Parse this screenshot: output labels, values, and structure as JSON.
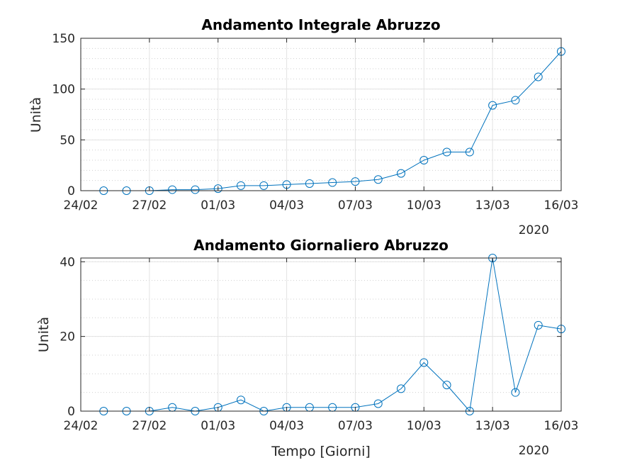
{
  "chart_data": [
    {
      "type": "line",
      "title": "Andamento Integrale Abruzzo",
      "xlabel": "",
      "ylabel": "Unità",
      "year_label": "2020",
      "x_tick_labels": [
        "24/02",
        "27/02",
        "01/03",
        "04/03",
        "07/03",
        "10/03",
        "13/03",
        "16/03"
      ],
      "y_ticks": [
        "0",
        "50",
        "100",
        "150"
      ],
      "ylim": [
        0,
        150
      ],
      "grid": "major+minor",
      "marker": "circle",
      "x": [
        "25/02",
        "26/02",
        "27/02",
        "28/02",
        "29/02",
        "01/03",
        "02/03",
        "03/03",
        "04/03",
        "05/03",
        "06/03",
        "07/03",
        "08/03",
        "09/03",
        "10/03",
        "11/03",
        "12/03",
        "13/03",
        "14/03",
        "15/03",
        "16/03"
      ],
      "values": [
        0,
        0,
        0,
        1,
        1,
        2,
        5,
        5,
        6,
        7,
        8,
        9,
        11,
        17,
        30,
        38,
        38,
        84,
        89,
        112,
        137
      ],
      "color": "#0072BD"
    },
    {
      "type": "line",
      "title": "Andamento Giornaliero Abruzzo",
      "xlabel": "Tempo [Giorni]",
      "ylabel": "Unità",
      "year_label": "2020",
      "x_tick_labels": [
        "24/02",
        "27/02",
        "01/03",
        "04/03",
        "07/03",
        "10/03",
        "13/03",
        "16/03"
      ],
      "y_ticks": [
        "0",
        "20",
        "40"
      ],
      "ylim": [
        0,
        41
      ],
      "grid": "major+minor",
      "marker": "circle",
      "x": [
        "25/02",
        "26/02",
        "27/02",
        "28/02",
        "29/02",
        "01/03",
        "02/03",
        "03/03",
        "04/03",
        "05/03",
        "06/03",
        "07/03",
        "08/03",
        "09/03",
        "10/03",
        "11/03",
        "12/03",
        "13/03",
        "14/03",
        "15/03",
        "16/03"
      ],
      "values": [
        0,
        0,
        0,
        1,
        0,
        1,
        3,
        0,
        1,
        1,
        1,
        1,
        2,
        6,
        13,
        7,
        0,
        41,
        5,
        23,
        22
      ],
      "color": "#0072BD"
    }
  ]
}
